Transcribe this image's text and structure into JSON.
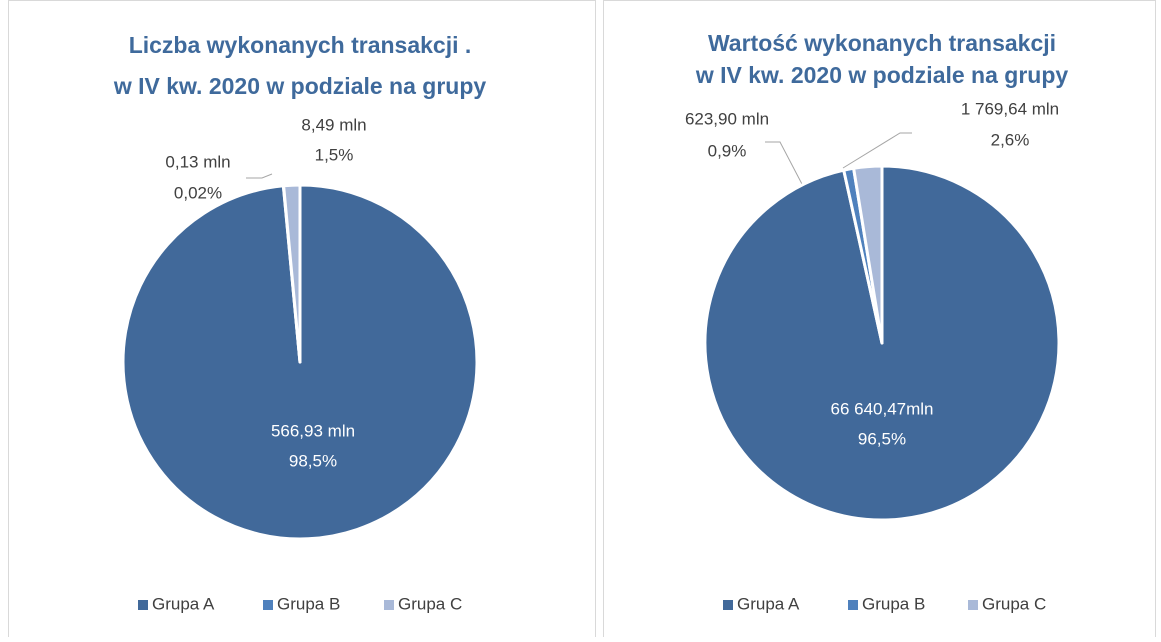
{
  "chart_data": [
    {
      "type": "pie",
      "title": [
        "Liczba wykonanych transakcji .",
        "w IV kw. 2020 w podziale na grupy"
      ],
      "categories": [
        "Grupa A",
        "Grupa B",
        "Grupa C"
      ],
      "colors": [
        "#41699a",
        "#4f81bd",
        "#a9b9d8"
      ],
      "values": [
        566.93,
        0.13,
        8.49
      ],
      "value_labels": [
        "566,93 mln",
        "0,13 mln",
        "8,49 mln"
      ],
      "percentages": [
        98.5,
        0.02,
        1.5
      ],
      "percentage_labels": [
        "98,5%",
        "0,02%",
        "1,5%"
      ],
      "legend": "bottom"
    },
    {
      "type": "pie",
      "title": [
        "Wartość wykonanych transakcji",
        "w IV kw. 2020 w podziale na grupy"
      ],
      "categories": [
        "Grupa A",
        "Grupa B",
        "Grupa C"
      ],
      "colors": [
        "#41699a",
        "#4f81bd",
        "#a9b9d8"
      ],
      "values": [
        66640.47,
        623.9,
        1769.64
      ],
      "value_labels": [
        "66 640,47mln",
        "623,90 mln",
        "1 769,64 mln"
      ],
      "percentages": [
        96.5,
        0.9,
        2.6
      ],
      "percentage_labels": [
        "96,5%",
        "0,9%",
        "2,6%"
      ],
      "legend": "bottom"
    }
  ]
}
